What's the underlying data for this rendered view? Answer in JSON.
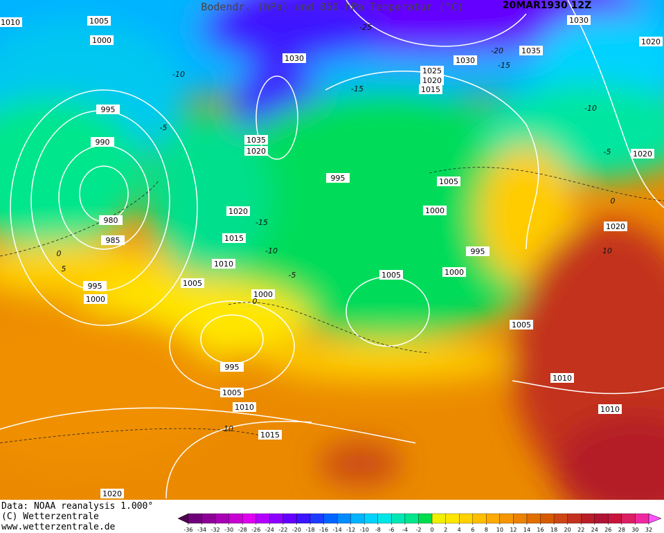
{
  "header": {
    "title": "Bodendr. (hPa) und 850 hPa Temperatur (°C)",
    "date": "20MAR1930 12Z"
  },
  "map": {
    "isobar_labels": [
      1010,
      1005,
      1000,
      995,
      990,
      980,
      985,
      995,
      1000,
      1005,
      1010,
      1015,
      1020,
      1035,
      1020,
      1030,
      995,
      1025,
      1020,
      1015,
      1030,
      1030,
      1035,
      1020,
      1020,
      1005,
      1000,
      1020,
      995,
      1000,
      1005,
      1000,
      1005,
      995,
      1005,
      1010,
      1015,
      1010,
      1010,
      1020
    ],
    "temperature_labels": [
      -25,
      -20,
      -15,
      -15,
      -10,
      -5,
      0,
      10,
      -10,
      -5,
      -15,
      -10,
      -5,
      0,
      0,
      5,
      10
    ]
  },
  "footer": {
    "lines": [
      "Data: NOAA reanalysis 1.000°",
      "(C) Wetterzentrale",
      "www.wetterzentrale.de"
    ]
  },
  "colorbar": {
    "ticks": [
      -36,
      -34,
      -32,
      -30,
      -28,
      -26,
      -24,
      -22,
      -20,
      -18,
      -16,
      -14,
      -12,
      -10,
      -8,
      -6,
      -4,
      -2,
      0,
      2,
      4,
      6,
      8,
      10,
      12,
      14,
      16,
      18,
      20,
      22,
      24,
      26,
      28,
      30,
      32
    ],
    "colors": [
      "#500050",
      "#70007a",
      "#8c0096",
      "#a800b4",
      "#c800d2",
      "#e000f0",
      "#b400ff",
      "#8c00ff",
      "#6400ff",
      "#3c14ff",
      "#1e3cff",
      "#0064ff",
      "#008cff",
      "#00b4ff",
      "#00d2ff",
      "#00e6e6",
      "#00e6b4",
      "#00e68c",
      "#00dc50",
      "#f0f000",
      "#ffe600",
      "#ffd200",
      "#ffbe00",
      "#ffaa00",
      "#f59600",
      "#eb8200",
      "#e16e00",
      "#d75a00",
      "#cd4614",
      "#c3321e",
      "#b91e28",
      "#af1432",
      "#c8143c",
      "#dc1e64",
      "#f028a0",
      "#ff50ff"
    ]
  }
}
